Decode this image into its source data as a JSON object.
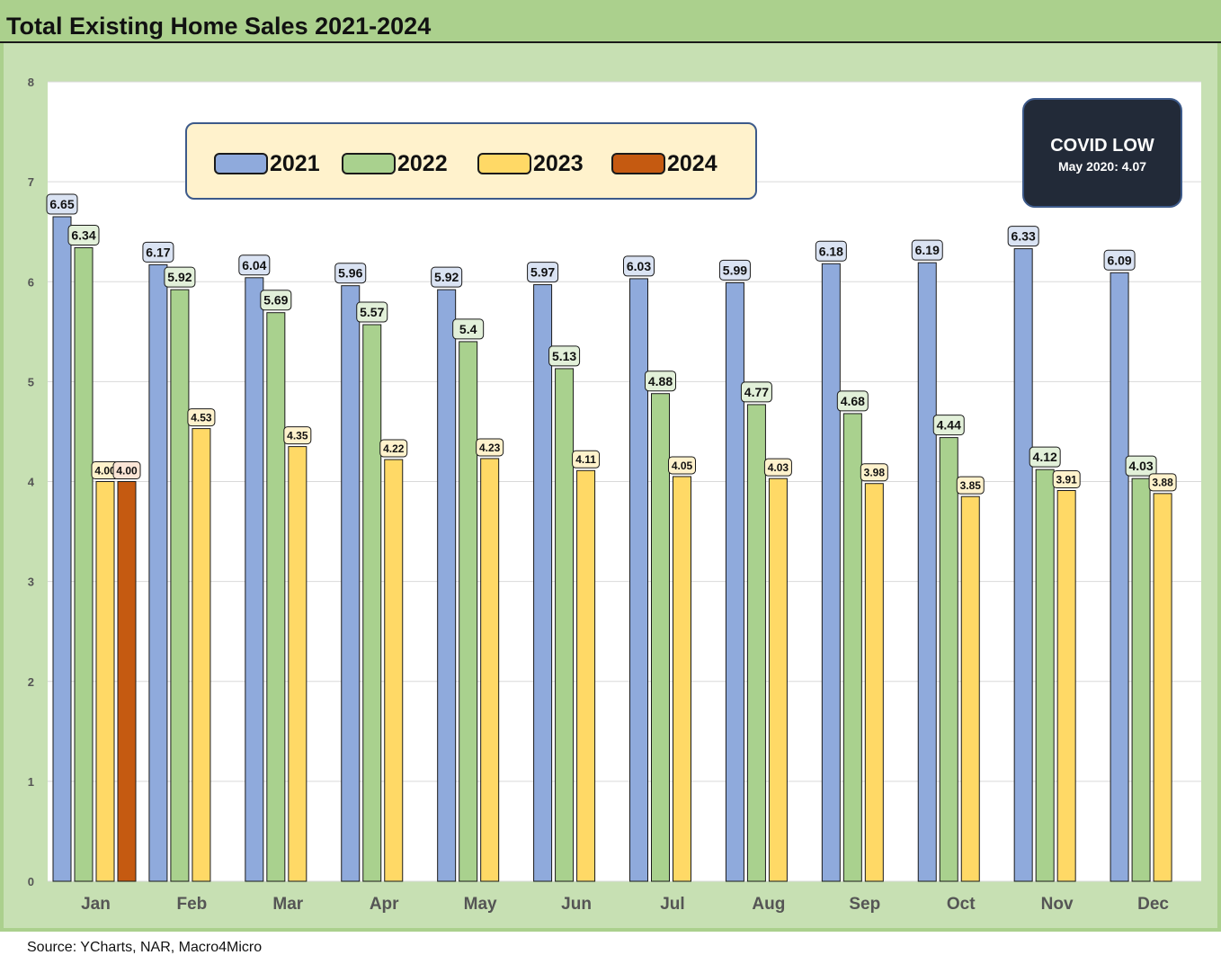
{
  "title": "Total Existing Home Sales 2021-2024",
  "source": "Source: YCharts, NAR, Macro4Micro",
  "covid_box": {
    "title": "COVID LOW",
    "subtitle": "May 2020: 4.07"
  },
  "chart_data": {
    "type": "bar",
    "title": "Total Existing Home Sales 2021-2024",
    "xlabel": "",
    "ylabel": "",
    "ylim": [
      0,
      8
    ],
    "yticks": [
      0,
      1,
      2,
      3,
      4,
      5,
      6,
      7,
      8
    ],
    "grid": true,
    "legend_position": "top-left",
    "categories": [
      "Jan",
      "Feb",
      "Mar",
      "Apr",
      "May",
      "Jun",
      "Jul",
      "Aug",
      "Sep",
      "Oct",
      "Nov",
      "Dec"
    ],
    "series": [
      {
        "name": "2021",
        "color": "#8faadc",
        "label_bg": "#dae3f3",
        "values": [
          6.65,
          6.17,
          6.04,
          5.96,
          5.92,
          5.97,
          6.03,
          5.99,
          6.18,
          6.19,
          6.33,
          6.09
        ],
        "labels": [
          "6.65",
          "6.17",
          "6.04",
          "5.96",
          "5.92",
          "5.97",
          "6.03",
          "5.99",
          "6.18",
          "6.19",
          "6.33",
          "6.09"
        ]
      },
      {
        "name": "2022",
        "color": "#a9d18e",
        "label_bg": "#e2f0d9",
        "values": [
          6.34,
          5.92,
          5.69,
          5.57,
          5.4,
          5.13,
          4.88,
          4.77,
          4.68,
          4.44,
          4.12,
          4.03
        ],
        "labels": [
          "6.34",
          "5.92",
          "5.69",
          "5.57",
          "5.4",
          "5.13",
          "4.88",
          "4.77",
          "4.68",
          "4.44",
          "4.12",
          "4.03"
        ]
      },
      {
        "name": "2023",
        "color": "#ffd966",
        "label_bg": "#fff2cc",
        "values": [
          4.0,
          4.53,
          4.35,
          4.22,
          4.23,
          4.11,
          4.05,
          4.03,
          3.98,
          3.85,
          3.91,
          3.88
        ],
        "labels": [
          "4.00",
          "4.53",
          "4.35",
          "4.22",
          "4.23",
          "4.11",
          "4.05",
          "4.03",
          "3.98",
          "3.85",
          "3.91",
          "3.88"
        ]
      },
      {
        "name": "2024",
        "color": "#c55a11",
        "label_bg": "#fbe5d6",
        "values": [
          4.0,
          null,
          null,
          null,
          null,
          null,
          null,
          null,
          null,
          null,
          null,
          null
        ],
        "labels": [
          "4.00",
          null,
          null,
          null,
          null,
          null,
          null,
          null,
          null,
          null,
          null,
          null
        ]
      }
    ]
  }
}
